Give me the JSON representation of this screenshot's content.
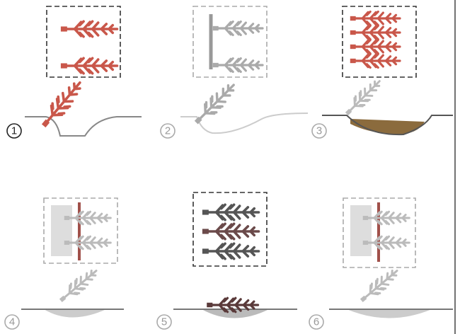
{
  "steps": [
    {
      "number": "1"
    },
    {
      "number": "2"
    },
    {
      "number": "3"
    },
    {
      "number": "4"
    },
    {
      "number": "5"
    },
    {
      "number": "6"
    }
  ]
}
